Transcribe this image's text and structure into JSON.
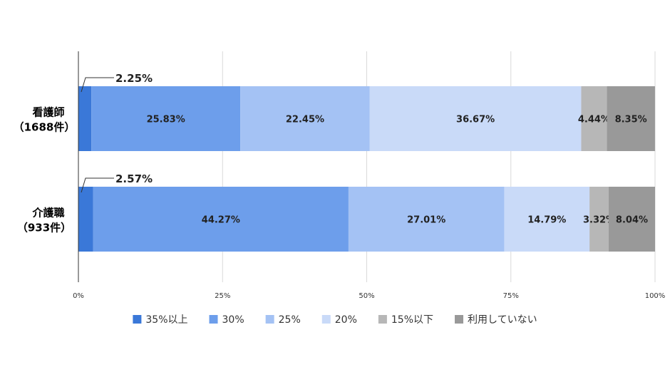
{
  "chart_data": {
    "type": "bar",
    "orientation": "horizontal",
    "stacked": true,
    "categories": [
      {
        "line1": "看護師",
        "line2": "（1688件）"
      },
      {
        "line1": "介護職",
        "line2": "（933件）"
      }
    ],
    "series": [
      {
        "name": "35%以上",
        "color": "#3a78d8",
        "values": [
          2.25,
          2.57
        ],
        "labels": [
          "2.25%",
          "2.57%"
        ],
        "label_style": "callout"
      },
      {
        "name": "30%",
        "color": "#6d9eeb",
        "values": [
          25.83,
          44.27
        ],
        "labels": [
          "25.83%",
          "44.27%"
        ]
      },
      {
        "name": "25%",
        "color": "#a4c2f4",
        "values": [
          22.45,
          27.01
        ],
        "labels": [
          "22.45%",
          "27.01%"
        ]
      },
      {
        "name": "20%",
        "color": "#c9daf8",
        "values": [
          36.67,
          14.79
        ],
        "labels": [
          "36.67%",
          "14.79%"
        ]
      },
      {
        "name": "15%以下",
        "color": "#b7b7b7",
        "values": [
          4.44,
          3.32
        ],
        "labels": [
          "4.44%",
          "3.32%"
        ]
      },
      {
        "name": "利用していない",
        "color": "#999999",
        "values": [
          8.35,
          8.04
        ],
        "labels": [
          "8.35%",
          "8.04%"
        ]
      }
    ],
    "x_ticks": [
      "0%",
      "25%",
      "50%",
      "75%",
      "100%"
    ],
    "xlim": [
      0,
      100
    ],
    "grid": true,
    "legend_position": "bottom"
  }
}
